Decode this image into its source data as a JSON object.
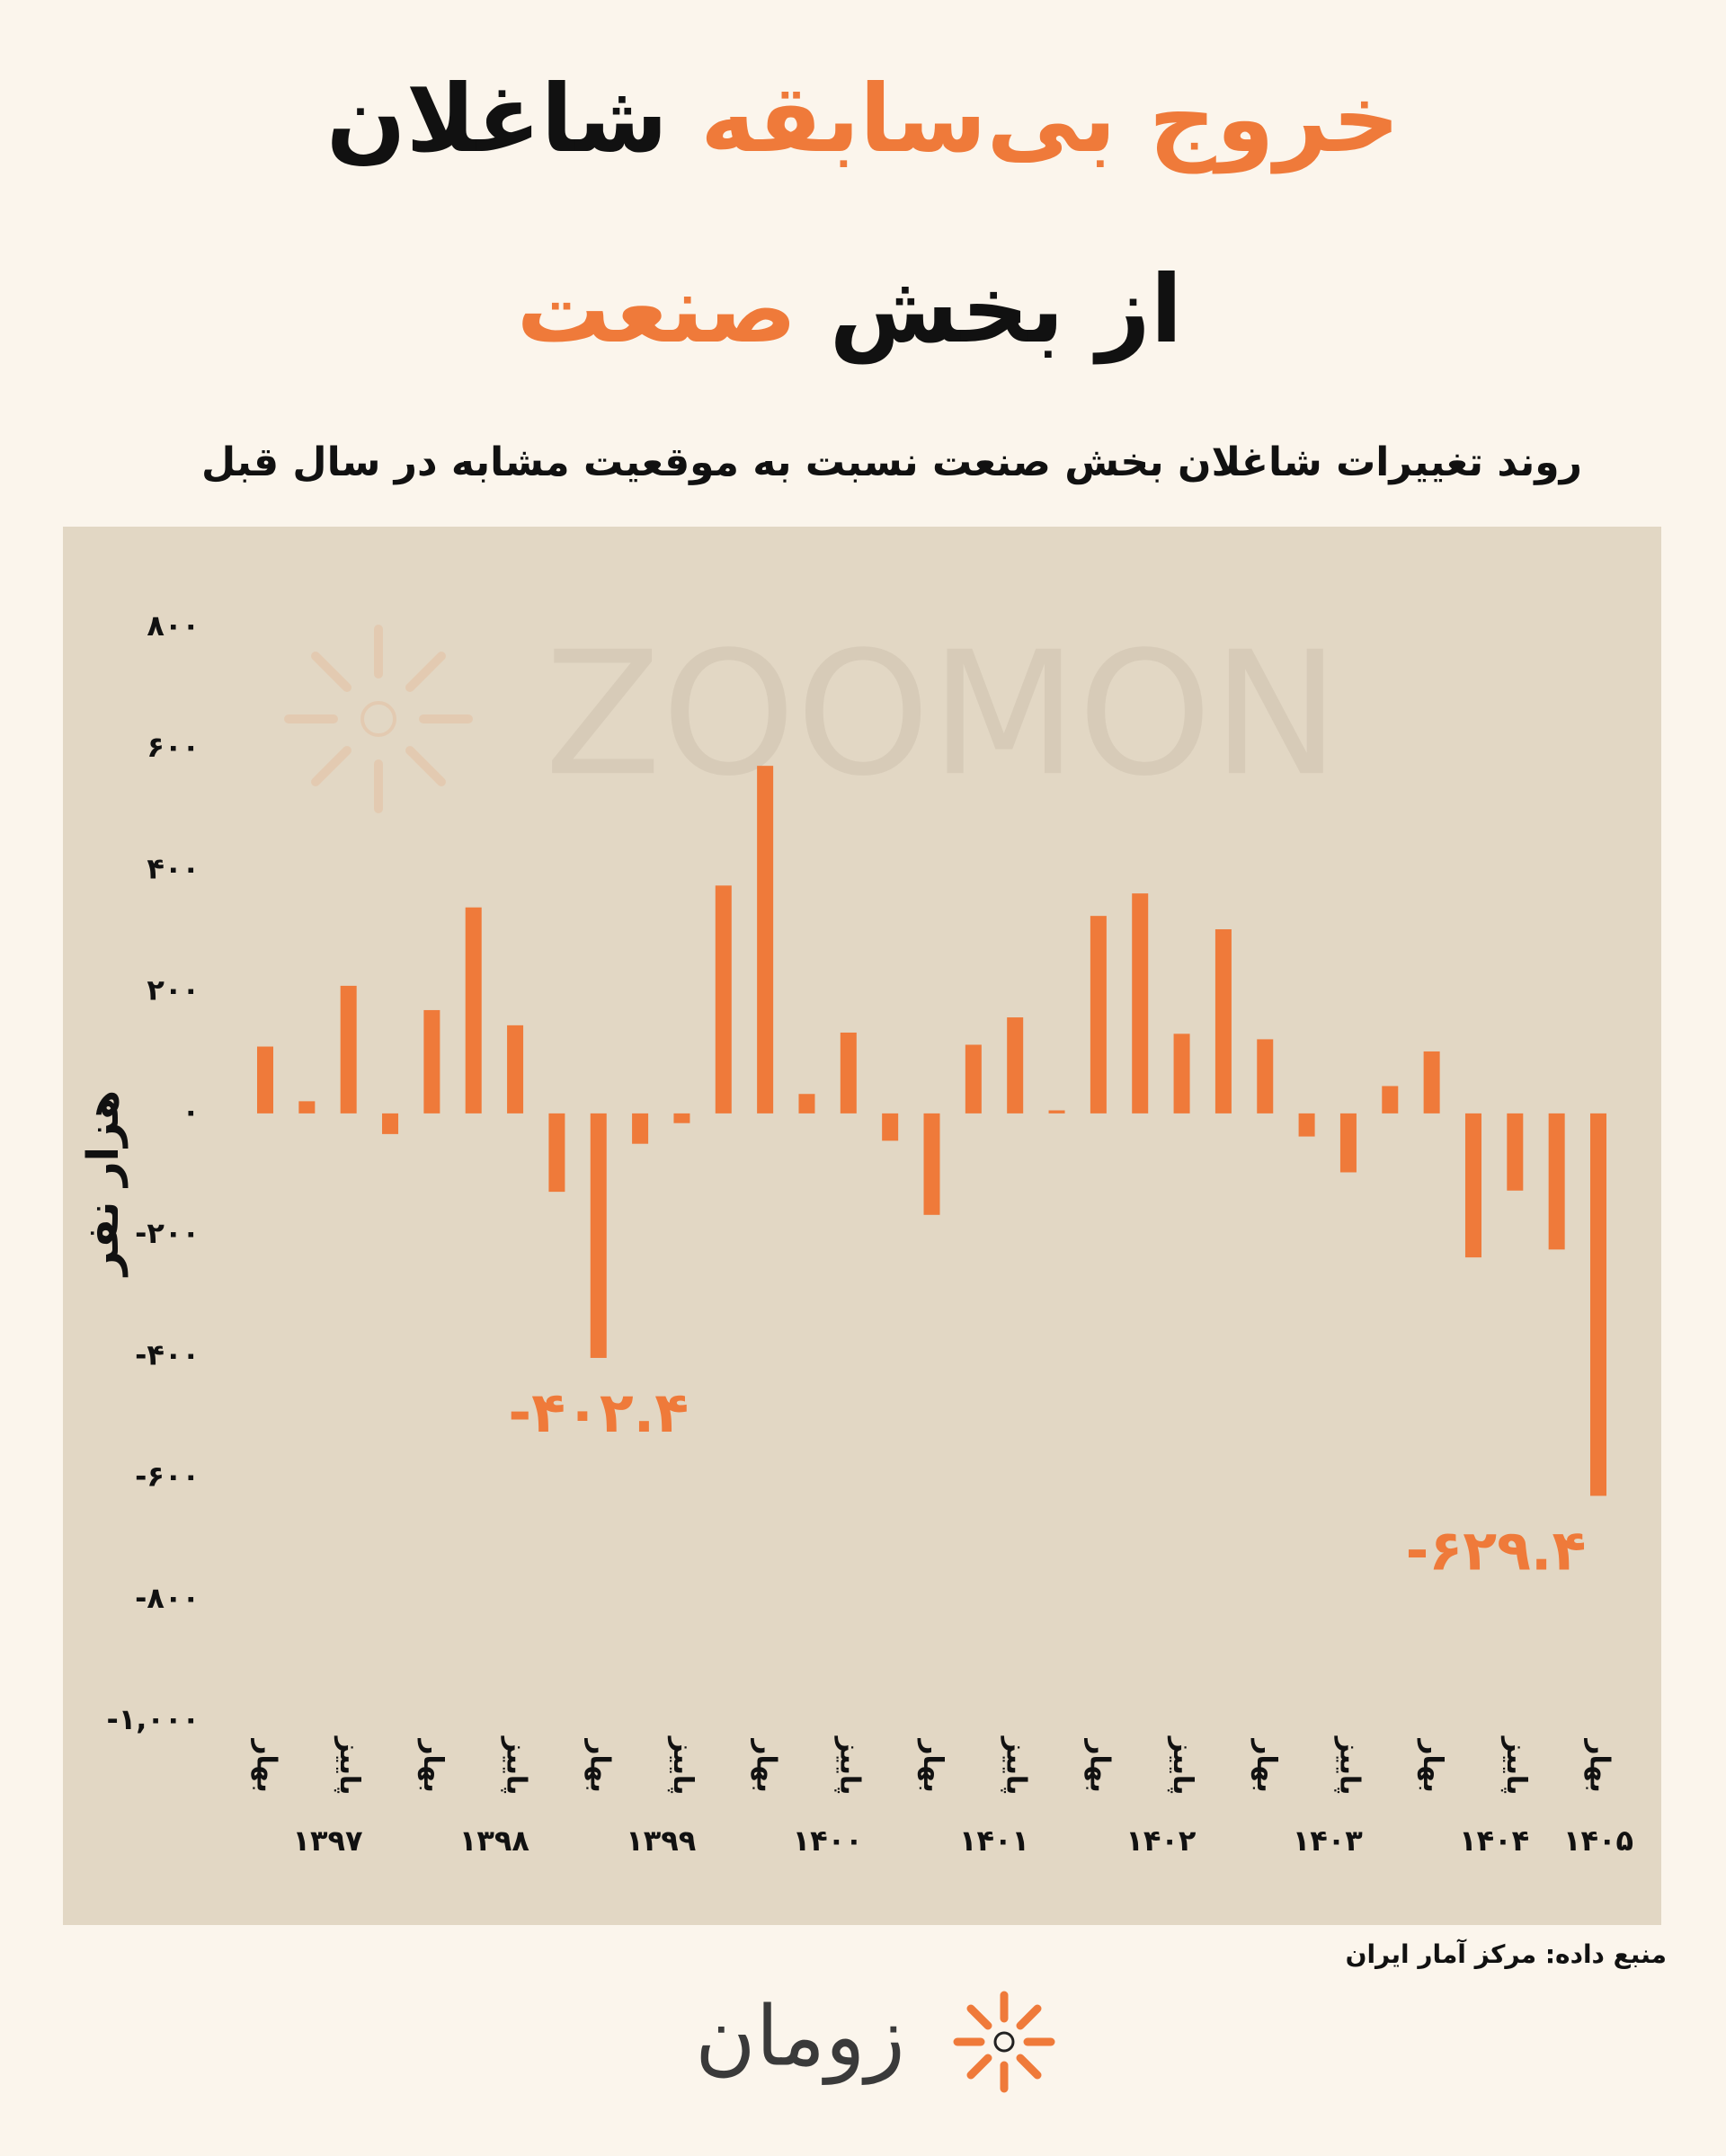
{
  "chart_data": {
    "type": "bar",
    "title_lines": [
      [
        {
          "text": "خروج بی‌سابقه",
          "color": "#ef7a3a"
        },
        {
          "text": "شاغلان",
          "color": "#111111"
        }
      ],
      [
        {
          "text": "از بخش",
          "color": "#111111"
        },
        {
          "text": "صنعت",
          "color": "#ef7a3a"
        }
      ]
    ],
    "subtitle": "روند تغییرات شاغلان بخش صنعت نسبت به موقعیت مشابه در سال قبل",
    "y_label": "هزار نفر",
    "watermark": "ZOOMON",
    "source": "منبع داده: مرکز آمار ایران",
    "brand": "زومان",
    "color": "#ef7a3a",
    "categories": [
      "بهار",
      null,
      "پاییز",
      null,
      "بهار",
      null,
      "پاییز",
      null,
      "بهار",
      null,
      "پاییز",
      null,
      "بهار",
      null,
      "پاییز",
      null,
      "بهار",
      null,
      "پاییز",
      null,
      "بهار",
      null,
      "پاییز",
      null,
      "بهار",
      null,
      "پاییز",
      null,
      "بهار",
      null,
      "پاییز",
      null,
      "بهار"
    ],
    "groups": [
      "۱۳۹۷",
      "۱۳۹۸",
      "۱۳۹۹",
      "۱۴۰۰",
      "۱۴۰۱",
      "۱۴۰۲",
      "۱۴۰۳",
      "۱۴۰۴",
      "۱۴۰۵"
    ],
    "values": [
      110,
      20,
      210,
      -34,
      170,
      339,
      145,
      -129,
      -402.4,
      -50,
      -16,
      375,
      572,
      32,
      133,
      -45,
      -167,
      113,
      158,
      5,
      325,
      362,
      131,
      303,
      122,
      -38,
      -97,
      45,
      102,
      -237,
      -127,
      -224,
      -629.4
    ],
    "value_labels": [
      null,
      null,
      null,
      null,
      null,
      null,
      null,
      null,
      "-۴۰۲.۴",
      null,
      null,
      null,
      null,
      null,
      null,
      null,
      null,
      null,
      null,
      null,
      null,
      null,
      null,
      null,
      null,
      null,
      null,
      null,
      null,
      null,
      null,
      null,
      "-۶۲۹.۴"
    ],
    "ylim": [
      -1000,
      800
    ],
    "yticks": [
      {
        "value": 800,
        "label": "۸۰۰"
      },
      {
        "value": 600,
        "label": "۶۰۰"
      },
      {
        "value": 400,
        "label": "۴۰۰"
      },
      {
        "value": 200,
        "label": "۲۰۰"
      },
      {
        "value": 0,
        "label": "۰"
      },
      {
        "value": -200,
        "label": "-۲۰۰"
      },
      {
        "value": -400,
        "label": "-۴۰۰"
      },
      {
        "value": -600,
        "label": "-۶۰۰"
      },
      {
        "value": -800,
        "label": "-۸۰۰"
      },
      {
        "value": -1000,
        "label": "-۱,۰۰۰"
      }
    ]
  }
}
